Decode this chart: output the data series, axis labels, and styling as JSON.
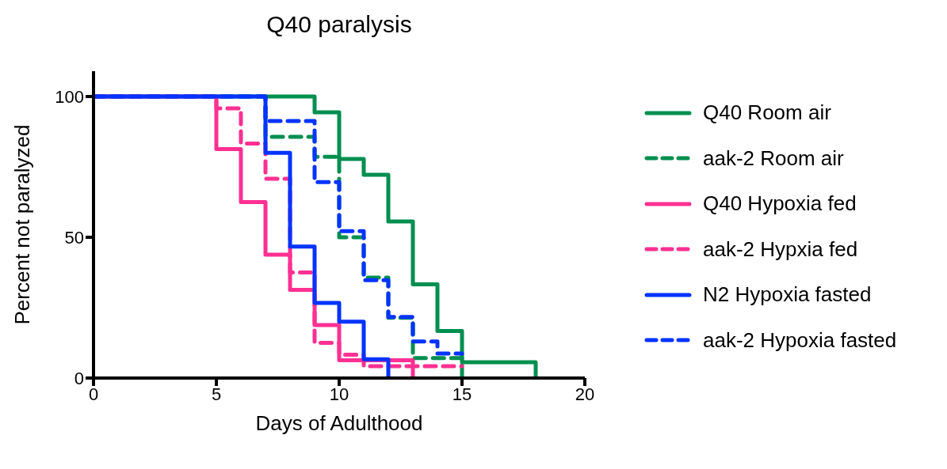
{
  "chart_data": {
    "type": "step",
    "title": "Q40 paralysis",
    "xlabel": "Days of Adulthood",
    "ylabel": "Percent not paralyzed",
    "xlim": [
      0,
      20
    ],
    "xticks": [
      0,
      5,
      10,
      15,
      20
    ],
    "ylim": [
      0,
      109
    ],
    "yticks": [
      0,
      50,
      100
    ],
    "legend": "right",
    "marker": "none",
    "series": [
      {
        "name": "Q40 Room air",
        "color": "#008f4f",
        "line_style": "solid",
        "x": [
          0,
          9,
          10,
          11,
          12,
          13,
          14,
          15,
          18
        ],
        "values": [
          100,
          94.4,
          77.8,
          72.2,
          55.6,
          33.3,
          16.7,
          5.6,
          0
        ]
      },
      {
        "name": "aak-2 Room air",
        "color": "#008f4f",
        "line_style": "dashed",
        "x": [
          0,
          7,
          9,
          10,
          11,
          12,
          13,
          15
        ],
        "values": [
          100,
          85.7,
          78.6,
          50,
          35.7,
          21.4,
          7.1,
          0
        ]
      },
      {
        "name": "Q40 Hypoxia fed",
        "color": "#ff3092",
        "line_style": "solid",
        "x": [
          0,
          5,
          6,
          7,
          8,
          9,
          10,
          13
        ],
        "values": [
          100,
          81.3,
          62.5,
          43.8,
          31.3,
          18.8,
          6.3,
          0
        ]
      },
      {
        "name": "aak-2 Hypxia fed",
        "color": "#ff3092",
        "line_style": "dashed",
        "x": [
          0,
          5,
          6,
          7,
          8,
          9,
          10,
          11,
          15
        ],
        "values": [
          100,
          95.8,
          83.3,
          70.8,
          37.5,
          12.5,
          8.3,
          4.2,
          4.2
        ]
      },
      {
        "name": "N2 Hypoxia fasted",
        "color": "#0433ff",
        "line_style": "solid",
        "x": [
          0,
          7,
          8,
          9,
          10,
          11,
          12
        ],
        "values": [
          100,
          80,
          46.7,
          26.7,
          20,
          6.7,
          0
        ]
      },
      {
        "name": "aak-2 Hypoxia fasted",
        "color": "#0433ff",
        "line_style": "dashed",
        "x": [
          0,
          7,
          9,
          10,
          11,
          12,
          13,
          14,
          15
        ],
        "values": [
          100,
          91.3,
          69.6,
          52.2,
          34.8,
          21.7,
          13,
          8.7,
          8.7
        ]
      }
    ]
  }
}
